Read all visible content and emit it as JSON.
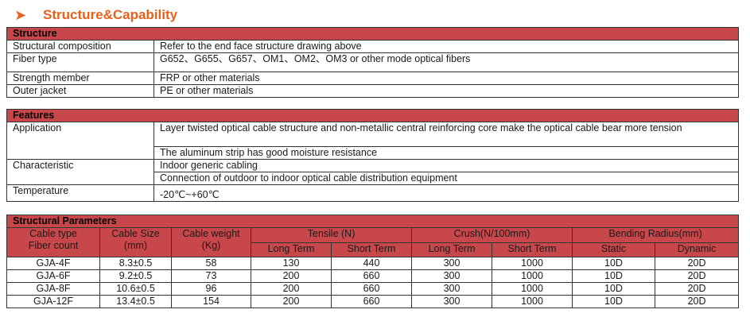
{
  "heading": {
    "arrow": "➤",
    "title": "Structure&Capability"
  },
  "structure": {
    "header": "Structure",
    "rows": [
      {
        "label": "Structural composition",
        "value": "Refer to the end face structure drawing above"
      },
      {
        "label": "Fiber type",
        "value": "G652、G655、G657、OM1、OM2、OM3 or other mode optical fibers"
      },
      {
        "label": "Strength member",
        "value": "FRP or other materials"
      },
      {
        "label": "Outer jacket",
        "value": "PE or other materials"
      }
    ]
  },
  "features": {
    "header": "Features",
    "application_label": "Application",
    "application_1": "Layer twisted optical cable structure and non-metallic central reinforcing core make the optical cable bear more tension",
    "application_2": "The aluminum strip has good moisture resistance",
    "characteristic_label": "Characteristic",
    "characteristic_1": "Indoor generic cabling",
    "characteristic_2": "Connection of outdoor to indoor optical cable distribution equipment",
    "temperature_label": "Temperature",
    "temperature_value": "-20℃~+60℃"
  },
  "params": {
    "header": "Structural Parameters",
    "col_type_1": "Cable type",
    "col_type_2": "Fiber count",
    "col_size_1": "Cable Size",
    "col_size_2": "(mm)",
    "col_weight_1": "Cable weight",
    "col_weight_2": "(Kg)",
    "col_tensile": "Tensile (N)",
    "col_crush": "Crush(N/100mm)",
    "col_bending": "Bending Radius(mm)",
    "sub_long": "Long Term",
    "sub_short": "Short Term",
    "sub_static": "Static",
    "sub_dynamic": "Dynamic",
    "rows": [
      {
        "type": "GJA-4F",
        "size": "8.3±0.5",
        "weight": "58",
        "t_long": "130",
        "t_short": "440",
        "c_long": "300",
        "c_short": "1000",
        "static": "10D",
        "dynamic": "20D"
      },
      {
        "type": "GJA-6F",
        "size": "9.2±0.5",
        "weight": "73",
        "t_long": "200",
        "t_short": "660",
        "c_long": "300",
        "c_short": "1000",
        "static": "10D",
        "dynamic": "20D"
      },
      {
        "type": "GJA-8F",
        "size": "10.6±0.5",
        "weight": "96",
        "t_long": "200",
        "t_short": "660",
        "c_long": "300",
        "c_short": "1000",
        "static": "10D",
        "dynamic": "20D"
      },
      {
        "type": "GJA-12F",
        "size": "13.4±0.5",
        "weight": "154",
        "t_long": "200",
        "t_short": "660",
        "c_long": "300",
        "c_short": "1000",
        "static": "10D",
        "dynamic": "20D"
      }
    ]
  }
}
